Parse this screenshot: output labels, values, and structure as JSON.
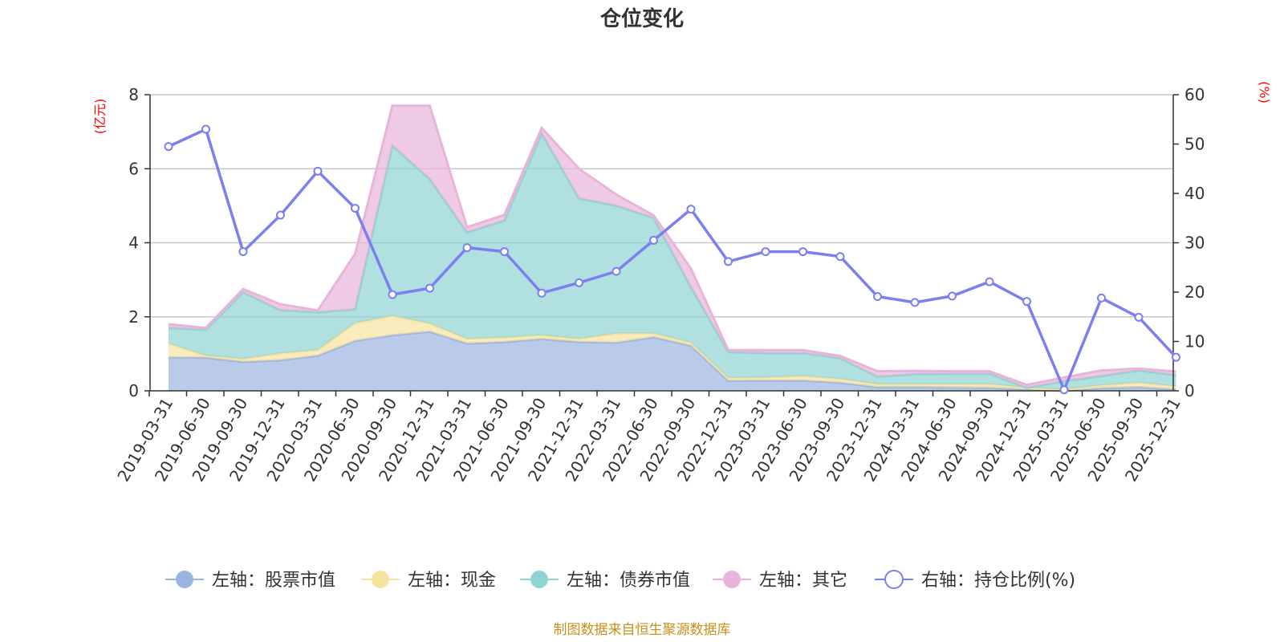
{
  "source_note": "制图数据来自恒生聚源数据库",
  "colors": {
    "stock": "#9bb5e0",
    "cash": "#f7e3a0",
    "bond": "#8fd3d3",
    "other": "#e8b4d8",
    "ratio": "#7b7ff0",
    "grid": "#c8c8c8",
    "axis": "#333333",
    "unit": "#ff0000",
    "source": "#c8901a"
  },
  "chart_data": {
    "type": "area",
    "title": "仓位变化",
    "left_axis_unit": "(亿元)",
    "right_axis_unit": "(%)",
    "left_ylim": [
      0,
      8
    ],
    "left_ticks": [
      0,
      2,
      4,
      6,
      8
    ],
    "right_ylim": [
      0,
      60
    ],
    "right_ticks": [
      0,
      10,
      20,
      30,
      40,
      50,
      60
    ],
    "grid": true,
    "legend_position": "bottom",
    "stacked_areas": true,
    "categories": [
      "2019-03-31",
      "2019-06-30",
      "2019-09-30",
      "2019-12-31",
      "2020-03-31",
      "2020-06-30",
      "2020-09-30",
      "2020-12-31",
      "2021-03-31",
      "2021-06-30",
      "2021-09-30",
      "2021-12-31",
      "2022-03-31",
      "2022-06-30",
      "2022-09-30",
      "2022-12-31",
      "2023-03-31",
      "2023-06-30",
      "2023-09-30",
      "2023-12-31",
      "2024-03-31",
      "2024-06-30",
      "2024-09-30",
      "2024-12-31",
      "2025-03-31",
      "2025-06-30",
      "2025-09-30",
      "2025-12-31"
    ],
    "series": [
      {
        "name": "左轴：股票市值",
        "key": "stock",
        "axis": "left",
        "values": [
          0.9,
          0.9,
          0.78,
          0.83,
          0.95,
          1.35,
          1.5,
          1.6,
          1.28,
          1.32,
          1.4,
          1.32,
          1.3,
          1.45,
          1.22,
          0.27,
          0.28,
          0.28,
          0.22,
          0.1,
          0.1,
          0.09,
          0.08,
          0.04,
          0.0,
          0.07,
          0.1,
          0.04
        ]
      },
      {
        "name": "左轴：现金",
        "key": "cash",
        "axis": "left",
        "values": [
          0.38,
          0.05,
          0.08,
          0.18,
          0.15,
          0.48,
          0.52,
          0.22,
          0.12,
          0.12,
          0.1,
          0.08,
          0.25,
          0.1,
          0.08,
          0.08,
          0.08,
          0.12,
          0.1,
          0.08,
          0.08,
          0.09,
          0.1,
          0.04,
          0.04,
          0.08,
          0.12,
          0.08
        ]
      },
      {
        "name": "左轴：债券市值",
        "key": "bond",
        "axis": "left",
        "values": [
          0.42,
          0.7,
          1.8,
          1.17,
          1.02,
          0.37,
          4.6,
          3.9,
          2.88,
          3.16,
          5.45,
          3.8,
          3.45,
          3.12,
          1.5,
          0.7,
          0.66,
          0.62,
          0.56,
          0.2,
          0.27,
          0.28,
          0.28,
          0.0,
          0.22,
          0.25,
          0.33,
          0.3
        ]
      },
      {
        "name": "左轴：其它",
        "key": "other",
        "axis": "left",
        "values": [
          0.1,
          0.05,
          0.09,
          0.16,
          0.05,
          1.5,
          1.08,
          1.98,
          0.14,
          0.15,
          0.15,
          0.8,
          0.3,
          0.07,
          0.5,
          0.05,
          0.08,
          0.08,
          0.06,
          0.15,
          0.09,
          0.07,
          0.07,
          0.08,
          0.1,
          0.15,
          0.05,
          0.1
        ]
      },
      {
        "name": "右轴：持仓比例(%)",
        "key": "ratio",
        "axis": "right",
        "values": [
          49.5,
          53,
          28.2,
          35.6,
          44.5,
          37,
          19.5,
          20.8,
          29,
          28.2,
          19.8,
          21.9,
          24.2,
          30.5,
          36.8,
          26.2,
          28.2,
          28.2,
          27.2,
          19.1,
          17.9,
          19.2,
          22.1,
          18.1,
          0.2,
          18.8,
          14.9,
          6.8
        ]
      }
    ]
  }
}
